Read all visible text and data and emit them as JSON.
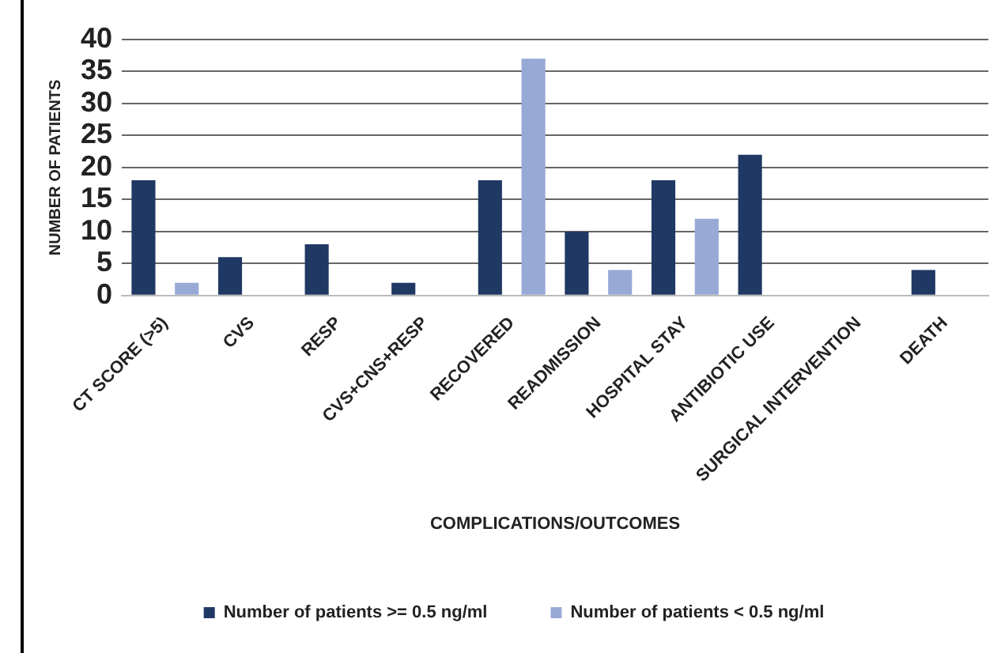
{
  "chart_data": {
    "type": "bar",
    "xlabel": "COMPLICATIONS/OUTCOMES",
    "ylabel": "NUMBER OF PATIENTS",
    "categories": [
      "CT SCORE (>5)",
      "CVS",
      "RESP",
      "CVS+CNS+RESP",
      "RECOVERED",
      "READMISSION",
      "HOSPITAL STAY",
      "ANTIBIOTIC USE",
      "SURGICAL INTERVENTION",
      "DEATH"
    ],
    "series": [
      {
        "name": "Number of patients >= 0.5 ng/ml",
        "color": "#1f3864",
        "values": [
          18,
          6,
          8,
          2,
          18,
          10,
          18,
          22,
          0,
          4
        ]
      },
      {
        "name": "Number of patients < 0.5 ng/ml",
        "color": "#98a9d6",
        "values": [
          2,
          0,
          0,
          0,
          37,
          4,
          12,
          0,
          0,
          0
        ]
      }
    ],
    "ylim": [
      0,
      40
    ],
    "yticks": [
      0,
      5,
      10,
      15,
      20,
      25,
      30,
      35,
      40
    ],
    "grid": "y",
    "legend": "bottom"
  }
}
